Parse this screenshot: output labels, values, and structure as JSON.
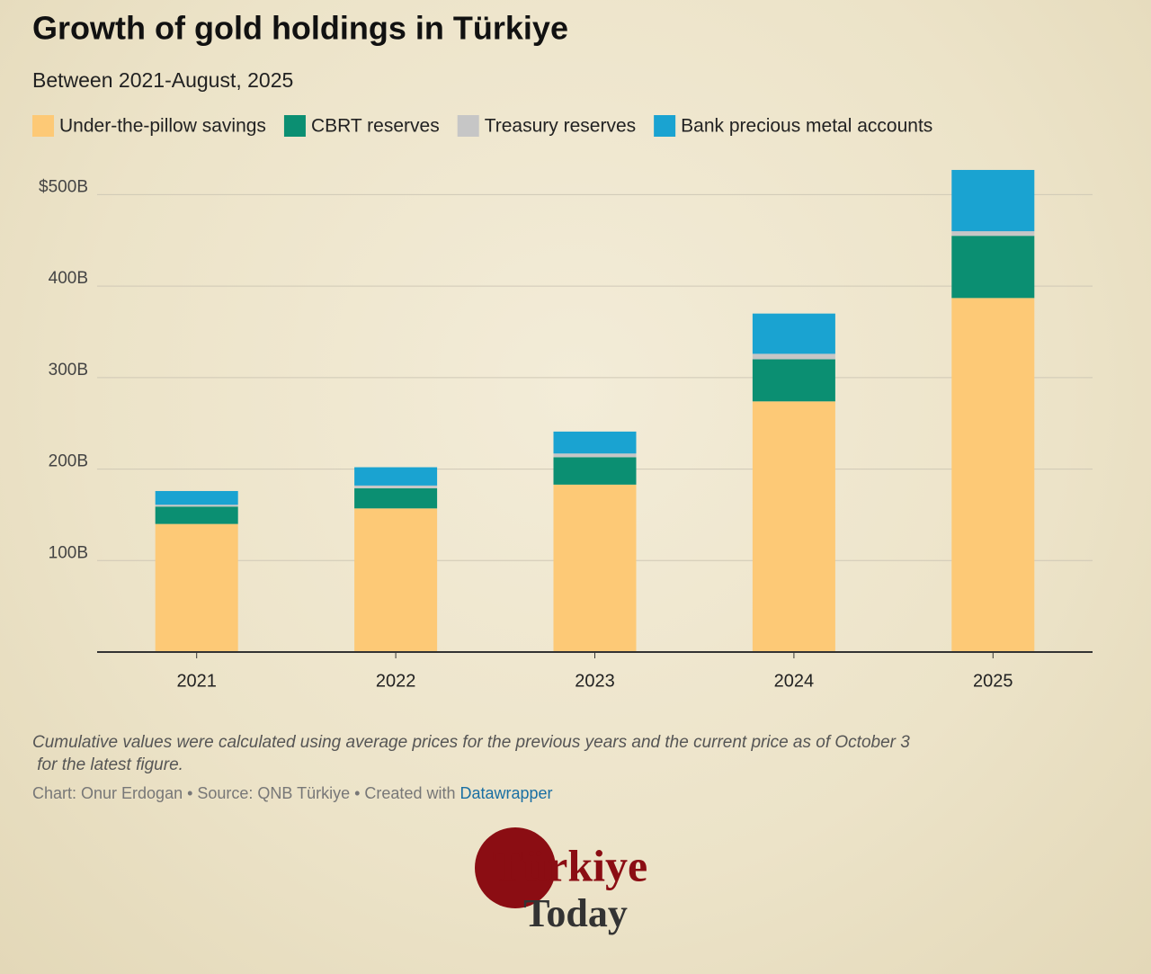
{
  "chart_data": {
    "type": "stacked_bar",
    "title": "Growth of gold holdings in Türkiye",
    "subtitle": "Between 2021-August, 2025",
    "categories": [
      "2021",
      "2022",
      "2023",
      "2024",
      "2025"
    ],
    "series": [
      {
        "name": "Under-the-pillow savings",
        "color": "#fdc976",
        "values": [
          140,
          157,
          183,
          274,
          387
        ]
      },
      {
        "name": "CBRT reserves",
        "color": "#0b8f72",
        "values": [
          19,
          22,
          30,
          46,
          68
        ]
      },
      {
        "name": "Treasury reserves",
        "color": "#c6c6c6",
        "values": [
          2,
          3,
          4,
          6,
          5
        ]
      },
      {
        "name": "Bank precious metal accounts",
        "color": "#1aa3d1",
        "values": [
          15,
          20,
          24,
          44,
          67
        ]
      }
    ],
    "ylim": [
      0,
      525
    ],
    "yticks": [
      {
        "value": 100,
        "label": "100B"
      },
      {
        "value": 200,
        "label": "200B"
      },
      {
        "value": 300,
        "label": "300B"
      },
      {
        "value": 400,
        "label": "400B"
      },
      {
        "value": 500,
        "label": "$500B"
      }
    ],
    "grid": true,
    "note": "Cumulative values were calculated using average prices for the previous years and the current price as of October 3 for the latest figure.",
    "credit": "Chart: Onur Erdogan • Source: QNB Türkiye • Created with",
    "credit_link": "Datawrapper",
    "logo": [
      "Türkiye",
      "Today"
    ]
  }
}
